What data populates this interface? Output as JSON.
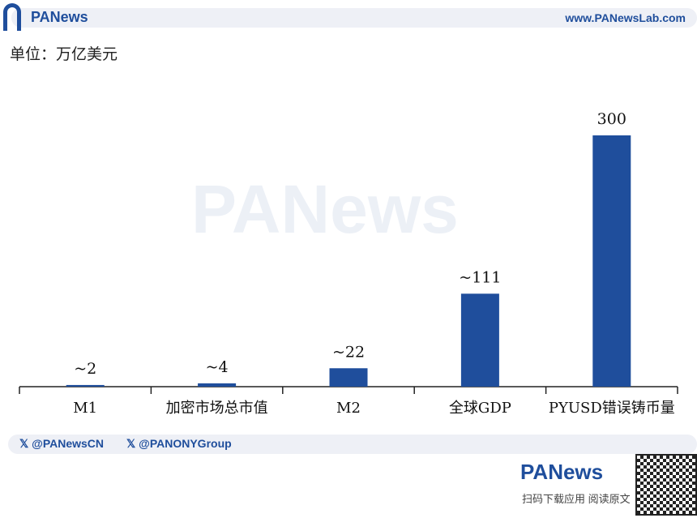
{
  "header": {
    "brand": "PANews",
    "url": "www.PANewsLab.com"
  },
  "unit_label": "单位：万亿美元",
  "watermark": "PANews",
  "footer": {
    "social": [
      "@PANewsCN",
      "@PANONYGroup"
    ],
    "brand": "PANews",
    "scan_text": "扫码下载应用  阅读原文"
  },
  "chart_data": {
    "type": "bar",
    "categories": [
      "M1",
      "加密市场总市值",
      "M2",
      "全球GDP",
      "PYUSD错误铸币量"
    ],
    "values": [
      2,
      4,
      22,
      111,
      300
    ],
    "data_labels": [
      "~2",
      "~4",
      "~22",
      "~111",
      "300"
    ],
    "ylabel": "单位：万亿美元",
    "ylim": [
      0,
      300
    ],
    "grid": false,
    "color": "#1f4e9c"
  }
}
